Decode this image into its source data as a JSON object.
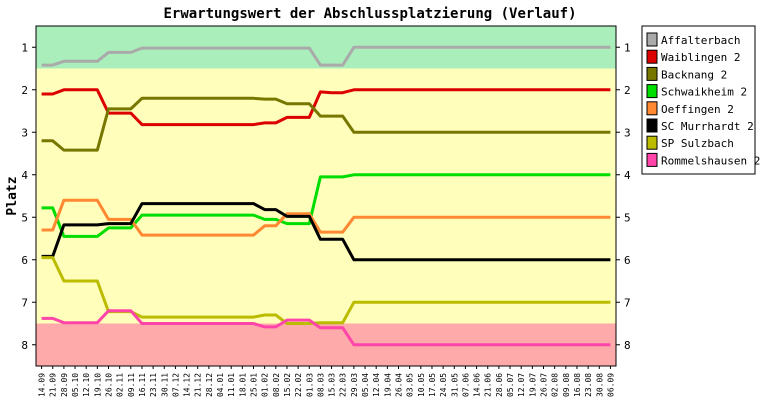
{
  "chart_data": {
    "type": "line",
    "title": "Erwartungswert der Abschlussplatzierung (Verlauf)",
    "ylabel": "Platz",
    "xlabel": "",
    "ylim": [
      0.5,
      8.5
    ],
    "y_reversed": true,
    "y_ticks": [
      1,
      2,
      3,
      4,
      5,
      6,
      7,
      8
    ],
    "grid": false,
    "legend_position": "right",
    "x": [
      "14.09",
      "21.09",
      "28.09",
      "05.10",
      "12.10",
      "19.10",
      "26.10",
      "02.11",
      "09.11",
      "16.11",
      "23.11",
      "30.11",
      "07.12",
      "14.12",
      "21.12",
      "28.12",
      "04.01",
      "11.01",
      "18.01",
      "25.01",
      "01.02",
      "08.02",
      "15.02",
      "22.02",
      "01.03",
      "08.03",
      "15.03",
      "22.03",
      "29.03",
      "05.04",
      "12.04",
      "19.04",
      "26.04",
      "03.05",
      "10.05",
      "17.05",
      "24.05",
      "31.05",
      "07.06",
      "14.06",
      "21.06",
      "28.06",
      "05.07",
      "12.07",
      "19.07",
      "26.07",
      "02.08",
      "09.08",
      "16.08",
      "23.08",
      "30.08",
      "06.09"
    ],
    "bands": [
      {
        "name": "promotion-zone",
        "from": 0.5,
        "to": 1.5,
        "color": "#aaeebb"
      },
      {
        "name": "midfield-zone",
        "from": 1.5,
        "to": 7.5,
        "color": "#ffffbb"
      },
      {
        "name": "relegation-zone",
        "from": 7.5,
        "to": 8.5,
        "color": "#ffaaaa"
      }
    ],
    "series": [
      {
        "name": "Affalterbach",
        "color": "#aaaaaa",
        "points": [
          [
            0,
            1.42
          ],
          [
            1,
            1.42
          ],
          [
            2,
            1.33
          ],
          [
            3,
            1.33
          ],
          [
            4,
            1.33
          ],
          [
            5,
            1.33
          ],
          [
            6,
            1.12
          ],
          [
            7,
            1.12
          ],
          [
            8,
            1.12
          ],
          [
            9,
            1.02
          ],
          [
            10,
            1.02
          ],
          [
            11,
            1.02
          ],
          [
            12,
            1.02
          ],
          [
            13,
            1.02
          ],
          [
            14,
            1.02
          ],
          [
            15,
            1.02
          ],
          [
            16,
            1.02
          ],
          [
            17,
            1.02
          ],
          [
            18,
            1.02
          ],
          [
            19,
            1.02
          ],
          [
            20,
            1.02
          ],
          [
            21,
            1.02
          ],
          [
            22,
            1.02
          ],
          [
            23,
            1.02
          ],
          [
            24,
            1.02
          ],
          [
            25,
            1.42
          ],
          [
            26,
            1.42
          ],
          [
            27,
            1.42
          ],
          [
            28,
            1.0
          ],
          [
            51,
            1.0
          ]
        ]
      },
      {
        "name": "Waiblingen 2",
        "color": "#dd0000",
        "points": [
          [
            0,
            2.1
          ],
          [
            1,
            2.1
          ],
          [
            2,
            2.0
          ],
          [
            3,
            2.0
          ],
          [
            4,
            2.0
          ],
          [
            5,
            2.0
          ],
          [
            6,
            2.55
          ],
          [
            7,
            2.55
          ],
          [
            8,
            2.55
          ],
          [
            9,
            2.82
          ],
          [
            10,
            2.82
          ],
          [
            11,
            2.82
          ],
          [
            12,
            2.82
          ],
          [
            13,
            2.82
          ],
          [
            14,
            2.82
          ],
          [
            15,
            2.82
          ],
          [
            16,
            2.82
          ],
          [
            17,
            2.82
          ],
          [
            18,
            2.82
          ],
          [
            19,
            2.82
          ],
          [
            20,
            2.78
          ],
          [
            21,
            2.78
          ],
          [
            22,
            2.65
          ],
          [
            23,
            2.65
          ],
          [
            24,
            2.65
          ],
          [
            25,
            2.05
          ],
          [
            26,
            2.07
          ],
          [
            27,
            2.07
          ],
          [
            28,
            2.0
          ],
          [
            51,
            2.0
          ]
        ]
      },
      {
        "name": "Backnang 2",
        "color": "#777700",
        "points": [
          [
            0,
            3.2
          ],
          [
            1,
            3.2
          ],
          [
            2,
            3.42
          ],
          [
            3,
            3.42
          ],
          [
            4,
            3.42
          ],
          [
            5,
            3.42
          ],
          [
            6,
            2.45
          ],
          [
            7,
            2.45
          ],
          [
            8,
            2.45
          ],
          [
            9,
            2.2
          ],
          [
            10,
            2.2
          ],
          [
            11,
            2.2
          ],
          [
            12,
            2.2
          ],
          [
            13,
            2.2
          ],
          [
            14,
            2.2
          ],
          [
            15,
            2.2
          ],
          [
            16,
            2.2
          ],
          [
            17,
            2.2
          ],
          [
            18,
            2.2
          ],
          [
            19,
            2.2
          ],
          [
            20,
            2.22
          ],
          [
            21,
            2.22
          ],
          [
            22,
            2.33
          ],
          [
            23,
            2.33
          ],
          [
            24,
            2.33
          ],
          [
            25,
            2.62
          ],
          [
            26,
            2.62
          ],
          [
            27,
            2.62
          ],
          [
            28,
            3.0
          ],
          [
            51,
            3.0
          ]
        ]
      },
      {
        "name": "Schwaikheim 2",
        "color": "#00dd00",
        "points": [
          [
            0,
            4.78
          ],
          [
            1,
            4.78
          ],
          [
            2,
            5.45
          ],
          [
            3,
            5.45
          ],
          [
            4,
            5.45
          ],
          [
            5,
            5.45
          ],
          [
            6,
            5.25
          ],
          [
            7,
            5.25
          ],
          [
            8,
            5.25
          ],
          [
            9,
            4.95
          ],
          [
            10,
            4.95
          ],
          [
            11,
            4.95
          ],
          [
            12,
            4.95
          ],
          [
            13,
            4.95
          ],
          [
            14,
            4.95
          ],
          [
            15,
            4.95
          ],
          [
            16,
            4.95
          ],
          [
            17,
            4.95
          ],
          [
            18,
            4.95
          ],
          [
            19,
            4.95
          ],
          [
            20,
            5.05
          ],
          [
            21,
            5.05
          ],
          [
            22,
            5.15
          ],
          [
            23,
            5.15
          ],
          [
            24,
            5.15
          ],
          [
            25,
            4.05
          ],
          [
            26,
            4.05
          ],
          [
            27,
            4.05
          ],
          [
            28,
            4.0
          ],
          [
            51,
            4.0
          ]
        ]
      },
      {
        "name": "Oeffingen 2",
        "color": "#ff8833",
        "points": [
          [
            0,
            5.3
          ],
          [
            1,
            5.3
          ],
          [
            2,
            4.6
          ],
          [
            3,
            4.6
          ],
          [
            4,
            4.6
          ],
          [
            5,
            4.6
          ],
          [
            6,
            5.05
          ],
          [
            7,
            5.05
          ],
          [
            8,
            5.05
          ],
          [
            9,
            5.42
          ],
          [
            10,
            5.42
          ],
          [
            11,
            5.42
          ],
          [
            12,
            5.42
          ],
          [
            13,
            5.42
          ],
          [
            14,
            5.42
          ],
          [
            15,
            5.42
          ],
          [
            16,
            5.42
          ],
          [
            17,
            5.42
          ],
          [
            18,
            5.42
          ],
          [
            19,
            5.42
          ],
          [
            20,
            5.2
          ],
          [
            21,
            5.2
          ],
          [
            22,
            4.92
          ],
          [
            23,
            4.92
          ],
          [
            24,
            4.92
          ],
          [
            25,
            5.35
          ],
          [
            26,
            5.35
          ],
          [
            27,
            5.35
          ],
          [
            28,
            5.0
          ],
          [
            51,
            5.0
          ]
        ]
      },
      {
        "name": "SC Murrhardt 2",
        "color": "#000000",
        "points": [
          [
            0,
            5.92
          ],
          [
            1,
            5.92
          ],
          [
            2,
            5.18
          ],
          [
            3,
            5.18
          ],
          [
            4,
            5.18
          ],
          [
            5,
            5.18
          ],
          [
            6,
            5.15
          ],
          [
            7,
            5.15
          ],
          [
            8,
            5.15
          ],
          [
            9,
            4.68
          ],
          [
            10,
            4.68
          ],
          [
            11,
            4.68
          ],
          [
            12,
            4.68
          ],
          [
            13,
            4.68
          ],
          [
            14,
            4.68
          ],
          [
            15,
            4.68
          ],
          [
            16,
            4.68
          ],
          [
            17,
            4.68
          ],
          [
            18,
            4.68
          ],
          [
            19,
            4.68
          ],
          [
            20,
            4.82
          ],
          [
            21,
            4.82
          ],
          [
            22,
            4.98
          ],
          [
            23,
            4.98
          ],
          [
            24,
            4.98
          ],
          [
            25,
            5.52
          ],
          [
            26,
            5.52
          ],
          [
            27,
            5.52
          ],
          [
            28,
            6.0
          ],
          [
            51,
            6.0
          ]
        ]
      },
      {
        "name": "SP Sulzbach",
        "color": "#bbbb00",
        "points": [
          [
            0,
            5.95
          ],
          [
            1,
            5.95
          ],
          [
            2,
            6.5
          ],
          [
            3,
            6.5
          ],
          [
            4,
            6.5
          ],
          [
            5,
            6.5
          ],
          [
            6,
            7.22
          ],
          [
            7,
            7.22
          ],
          [
            8,
            7.22
          ],
          [
            9,
            7.35
          ],
          [
            10,
            7.35
          ],
          [
            11,
            7.35
          ],
          [
            12,
            7.35
          ],
          [
            13,
            7.35
          ],
          [
            14,
            7.35
          ],
          [
            15,
            7.35
          ],
          [
            16,
            7.35
          ],
          [
            17,
            7.35
          ],
          [
            18,
            7.35
          ],
          [
            19,
            7.35
          ],
          [
            20,
            7.3
          ],
          [
            21,
            7.3
          ],
          [
            22,
            7.5
          ],
          [
            23,
            7.5
          ],
          [
            24,
            7.5
          ],
          [
            25,
            7.48
          ],
          [
            26,
            7.48
          ],
          [
            27,
            7.48
          ],
          [
            28,
            7.0
          ],
          [
            51,
            7.0
          ]
        ]
      },
      {
        "name": "Rommelshausen 2",
        "color": "#ff44aa",
        "points": [
          [
            0,
            7.38
          ],
          [
            1,
            7.38
          ],
          [
            2,
            7.48
          ],
          [
            3,
            7.48
          ],
          [
            4,
            7.48
          ],
          [
            5,
            7.48
          ],
          [
            6,
            7.2
          ],
          [
            7,
            7.2
          ],
          [
            8,
            7.2
          ],
          [
            9,
            7.5
          ],
          [
            10,
            7.5
          ],
          [
            11,
            7.5
          ],
          [
            12,
            7.5
          ],
          [
            13,
            7.5
          ],
          [
            14,
            7.5
          ],
          [
            15,
            7.5
          ],
          [
            16,
            7.5
          ],
          [
            17,
            7.5
          ],
          [
            18,
            7.5
          ],
          [
            19,
            7.5
          ],
          [
            20,
            7.58
          ],
          [
            21,
            7.58
          ],
          [
            22,
            7.42
          ],
          [
            23,
            7.42
          ],
          [
            24,
            7.42
          ],
          [
            25,
            7.6
          ],
          [
            26,
            7.6
          ],
          [
            27,
            7.6
          ],
          [
            28,
            8.0
          ],
          [
            51,
            8.0
          ]
        ]
      }
    ]
  }
}
